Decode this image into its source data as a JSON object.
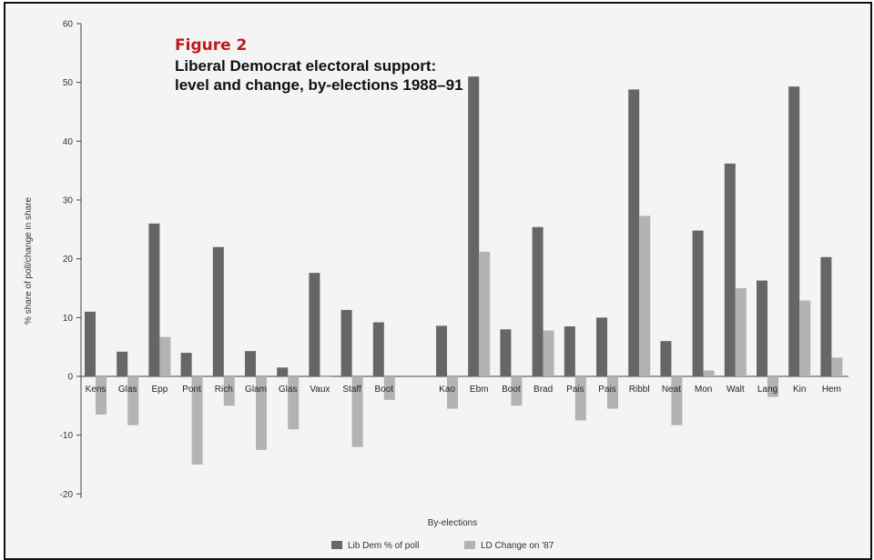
{
  "figure": {
    "label": "Figure 2",
    "title": "Liberal Democrat electoral support: level and change, by-elections 1988–91"
  },
  "colors": {
    "lib_dem": "#666666",
    "ld_change": "#b3b3b3",
    "accent": "#c0181b"
  },
  "chart_data": {
    "type": "bar",
    "title": "Liberal Democrat electoral support: level and change, by-elections 1988–91",
    "xlabel": "By-elections",
    "ylabel": "% share of poll/change in share",
    "ylim": [
      -20,
      60
    ],
    "yticks": [
      -20,
      -10,
      0,
      10,
      20,
      30,
      40,
      50,
      60
    ],
    "grid": false,
    "legend_position": "bottom",
    "categories": [
      "Kens",
      "Glas",
      "Epp",
      "Pont",
      "Rich",
      "Glam",
      "Glas",
      "Vaux",
      "Staff",
      "Boot",
      "Kao",
      "Ebm",
      "Boot",
      "Brad",
      "Pais",
      "Pais",
      "Ribbl",
      "Neat",
      "Mon",
      "Walt",
      "Lang",
      "Kin",
      "Hem"
    ],
    "series": [
      {
        "name": "Lib Dem % of poll",
        "values": [
          11,
          4.2,
          26,
          4,
          22,
          4.3,
          1.5,
          17.6,
          11.3,
          9.2,
          8.6,
          51,
          8,
          25.4,
          8.5,
          10,
          48.8,
          6,
          24.8,
          36.2,
          16.3,
          49.3,
          20.3
        ]
      },
      {
        "name": "LD Change on '87",
        "values": [
          -6.5,
          -8.3,
          6.7,
          -15,
          -5,
          -12.5,
          -9,
          0,
          -12,
          -4,
          -5.5,
          21.2,
          -5,
          7.8,
          -7.5,
          -5.5,
          27.3,
          -8.3,
          1,
          15,
          -3.5,
          12.9,
          3.2
        ]
      }
    ]
  }
}
